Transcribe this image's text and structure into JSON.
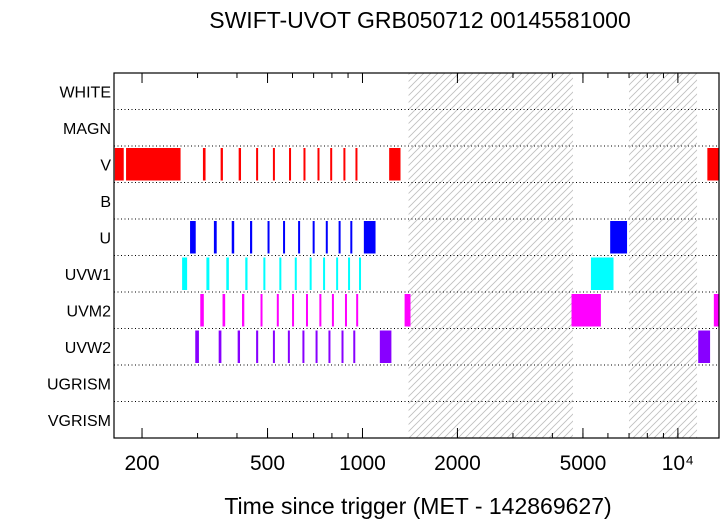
{
  "chart_data": {
    "type": "timeline",
    "title": "SWIFT-UVOT GRB050712 00145581000",
    "xlabel": "Time since trigger (MET - 142869627)",
    "x_scale": "log",
    "xlim": [
      163,
      13500
    ],
    "x_ticks": [
      {
        "value": 200,
        "label": "200"
      },
      {
        "value": 500,
        "label": "500"
      },
      {
        "value": 1000,
        "label": "1000"
      },
      {
        "value": 2000,
        "label": "2000"
      },
      {
        "value": 5000,
        "label": "5000"
      },
      {
        "value": 10000,
        "label": "10⁴"
      }
    ],
    "filters": [
      "WHITE",
      "MAGN",
      "V",
      "B",
      "U",
      "UVW1",
      "UVM2",
      "UVW2",
      "UGRISM",
      "VGRISM"
    ],
    "gaps": [
      [
        1400,
        4650
      ],
      [
        7000,
        11500
      ]
    ],
    "series": [
      {
        "name": "WHITE",
        "color": "#ff0000",
        "intervals": []
      },
      {
        "name": "MAGN",
        "color": "#ff0000",
        "intervals": []
      },
      {
        "name": "V",
        "color": "#ff0000",
        "intervals": [
          [
            164,
            175
          ],
          [
            178,
            265
          ],
          [
            312,
            318
          ],
          [
            355,
            361
          ],
          [
            405,
            412
          ],
          [
            460,
            466
          ],
          [
            520,
            526
          ],
          [
            585,
            591
          ],
          [
            650,
            656
          ],
          [
            720,
            726
          ],
          [
            790,
            796
          ],
          [
            870,
            876
          ],
          [
            950,
            956
          ],
          [
            1215,
            1320
          ],
          [
            12400,
            13500
          ]
        ]
      },
      {
        "name": "B",
        "color": "#0000ff",
        "intervals": []
      },
      {
        "name": "U",
        "color": "#0000ff",
        "intervals": [
          [
            284,
            296
          ],
          [
            338,
            345
          ],
          [
            385,
            392
          ],
          [
            440,
            447
          ],
          [
            500,
            507
          ],
          [
            560,
            567
          ],
          [
            625,
            632
          ],
          [
            695,
            702
          ],
          [
            765,
            772
          ],
          [
            840,
            847
          ],
          [
            915,
            922
          ],
          [
            1010,
            1100
          ],
          [
            6100,
            6900
          ]
        ]
      },
      {
        "name": "UVW1",
        "color": "#00ffff",
        "intervals": [
          [
            268,
            278
          ],
          [
            320,
            327
          ],
          [
            370,
            377
          ],
          [
            425,
            432
          ],
          [
            485,
            492
          ],
          [
            545,
            552
          ],
          [
            610,
            617
          ],
          [
            680,
            687
          ],
          [
            750,
            757
          ],
          [
            825,
            832
          ],
          [
            900,
            906
          ],
          [
            975,
            982
          ],
          [
            5300,
            6250
          ]
        ]
      },
      {
        "name": "UVM2",
        "color": "#ff00ff",
        "intervals": [
          [
            306,
            314
          ],
          [
            360,
            367
          ],
          [
            415,
            422
          ],
          [
            475,
            482
          ],
          [
            535,
            542
          ],
          [
            598,
            605
          ],
          [
            662,
            669
          ],
          [
            730,
            737
          ],
          [
            800,
            807
          ],
          [
            880,
            887
          ],
          [
            955,
            962
          ],
          [
            1360,
            1420
          ],
          [
            4600,
            5700
          ],
          [
            13000,
            13500
          ]
        ]
      },
      {
        "name": "UVW2",
        "color": "#8800ff",
        "intervals": [
          [
            295,
            303
          ],
          [
            350,
            357
          ],
          [
            402,
            409
          ],
          [
            460,
            467
          ],
          [
            520,
            527
          ],
          [
            580,
            587
          ],
          [
            645,
            652
          ],
          [
            710,
            717
          ],
          [
            780,
            787
          ],
          [
            858,
            865
          ],
          [
            935,
            942
          ],
          [
            1135,
            1235
          ],
          [
            11600,
            12650
          ]
        ]
      },
      {
        "name": "UGRISM",
        "color": "#000000",
        "intervals": []
      },
      {
        "name": "VGRISM",
        "color": "#000000",
        "intervals": []
      }
    ]
  }
}
